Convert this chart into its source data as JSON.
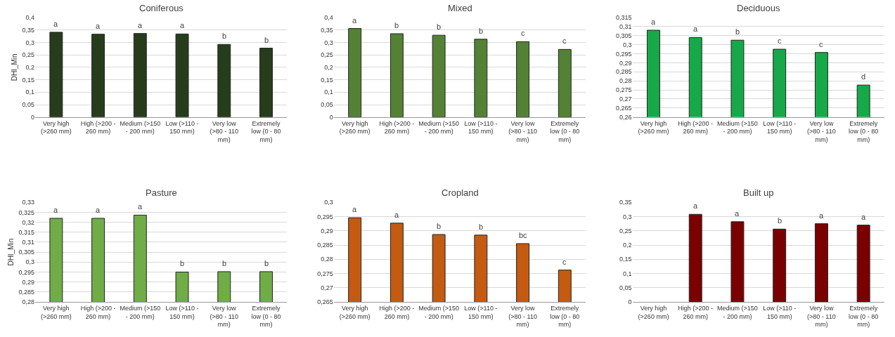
{
  "chart_data": [
    {
      "type": "bar",
      "title": "Coniferous",
      "ylabel": "DHI_Min",
      "categories": [
        "Very high (>260 mm)",
        "High (>200 - 260 mm)",
        "Medium (>150 - 200 mm)",
        "Low (>110 - 150 mm)",
        "Very low (>80 - 110 mm)",
        "Extremely low (0 - 80 mm)"
      ],
      "series": [
        {
          "color": "#263d1c",
          "values": [
            0.341,
            0.333,
            0.336,
            0.334,
            0.292,
            0.277
          ]
        }
      ],
      "ylim": [
        0,
        0.4
      ],
      "yticks": [
        0,
        {
          "value": 0.05,
          "label": "0,05"
        },
        {
          "value": 0.1,
          "label": "0,1"
        },
        {
          "value": 0.15,
          "label": "0,15"
        },
        {
          "value": 0.2,
          "label": "0,2"
        },
        {
          "value": 0.25,
          "label": "0,25"
        },
        {
          "value": 0.3,
          "label": "0,3"
        },
        {
          "value": 0.35,
          "label": "0,35"
        },
        {
          "value": 0.4,
          "label": "0,4"
        }
      ],
      "grid": "y",
      "annotations": [
        "a",
        "a",
        "a",
        "a",
        "b",
        "b"
      ]
    },
    {
      "type": "bar",
      "title": "Mixed",
      "categories": [
        "Very high (>260 mm)",
        "High (>200 - 260 mm)",
        "Medium (>150 - 200 mm)",
        "Low (>110 - 150 mm)",
        "Very low (>80 - 110 mm)",
        "Extremely low (0 - 80 mm)"
      ],
      "series": [
        {
          "color": "#548235",
          "values": [
            0.356,
            0.335,
            0.329,
            0.313,
            0.303,
            0.272
          ]
        }
      ],
      "ylim": [
        0,
        0.4
      ],
      "yticks": [
        0,
        {
          "value": 0.05,
          "label": "0,05"
        },
        {
          "value": 0.1,
          "label": "0,1"
        },
        {
          "value": 0.15,
          "label": "0,15"
        },
        {
          "value": 0.2,
          "label": "0,2"
        },
        {
          "value": 0.25,
          "label": "0,25"
        },
        {
          "value": 0.3,
          "label": "0,3"
        },
        {
          "value": 0.35,
          "label": "0,35"
        },
        {
          "value": 0.4,
          "label": "0,4"
        }
      ],
      "grid": "y",
      "annotations": [
        "a",
        "b",
        "b",
        "b",
        "c",
        "c"
      ]
    },
    {
      "type": "bar",
      "title": "Deciduous",
      "categories": [
        "Very high (>260 mm)",
        "High (>200 - 260 mm)",
        "Medium (>150 - 200 mm)",
        "Low (>110 - 150 mm)",
        "Very low (>80 - 110 mm)",
        "Extremely low (0 - 80 mm)"
      ],
      "series": [
        {
          "color": "#17a84a",
          "values": [
            0.308,
            0.304,
            0.3025,
            0.2975,
            0.2957,
            0.2777
          ]
        }
      ],
      "ylim": [
        0.26,
        0.315
      ],
      "yticks": [
        {
          "value": 0.26,
          "label": "0,26"
        },
        {
          "value": 0.265,
          "label": "0,265"
        },
        {
          "value": 0.27,
          "label": "0,27"
        },
        {
          "value": 0.275,
          "label": "0,275"
        },
        {
          "value": 0.28,
          "label": "0,28"
        },
        {
          "value": 0.285,
          "label": "0,285"
        },
        {
          "value": 0.29,
          "label": "0,29"
        },
        {
          "value": 0.295,
          "label": "0,295"
        },
        {
          "value": 0.3,
          "label": "0,3"
        },
        {
          "value": 0.305,
          "label": "0,305"
        },
        {
          "value": 0.31,
          "label": "0,31"
        },
        {
          "value": 0.315,
          "label": "0,315"
        }
      ],
      "grid": "y",
      "annotations": [
        "a",
        "a",
        "b",
        "c",
        "c",
        "d"
      ]
    },
    {
      "type": "bar",
      "title": "Pasture",
      "ylabel": "DHI_Min",
      "categories": [
        "Very high (>260 mm)",
        "High (>200 - 260 mm)",
        "Medium (>150 - 200 mm)",
        "Low (>110 - 150 mm)",
        "Very low (>80 - 110 mm)",
        "Extremely low (0 - 80 mm)"
      ],
      "series": [
        {
          "color": "#70ad47",
          "values": [
            0.322,
            0.322,
            0.3236,
            0.295,
            0.2952,
            0.2952
          ]
        }
      ],
      "ylim": [
        0.28,
        0.33
      ],
      "yticks": [
        {
          "value": 0.28,
          "label": "0,28"
        },
        {
          "value": 0.285,
          "label": "0,285"
        },
        {
          "value": 0.29,
          "label": "0,29"
        },
        {
          "value": 0.295,
          "label": "0,295"
        },
        {
          "value": 0.3,
          "label": "0,3"
        },
        {
          "value": 0.305,
          "label": "0,305"
        },
        {
          "value": 0.31,
          "label": "0,31"
        },
        {
          "value": 0.315,
          "label": "0,315"
        },
        {
          "value": 0.32,
          "label": "0,32"
        },
        {
          "value": 0.325,
          "label": "0,325"
        },
        {
          "value": 0.33,
          "label": "0,33"
        }
      ],
      "grid": "y",
      "annotations": [
        "a",
        "a",
        "a",
        "b",
        "b",
        "b"
      ]
    },
    {
      "type": "bar",
      "title": "Cropland",
      "categories": [
        "Very high (>260 mm)",
        "High (>200 - 260 mm)",
        "Medium (>150 - 200 mm)",
        "Low (>110 - 150 mm)",
        "Very low (>80 - 110 mm)",
        "Extremely low (0 - 80 mm)"
      ],
      "series": [
        {
          "color": "#c55a11",
          "values": [
            0.2946,
            0.2927,
            0.2887,
            0.2885,
            0.2855,
            0.2762
          ]
        }
      ],
      "ylim": [
        0.265,
        0.3
      ],
      "yticks": [
        {
          "value": 0.265,
          "label": "0,265"
        },
        {
          "value": 0.27,
          "label": "0,27"
        },
        {
          "value": 0.275,
          "label": "0,275"
        },
        {
          "value": 0.28,
          "label": "0,28"
        },
        {
          "value": 0.285,
          "label": "0,285"
        },
        {
          "value": 0.29,
          "label": "0,29"
        },
        {
          "value": 0.295,
          "label": "0,295"
        },
        {
          "value": 0.3,
          "label": "0,3"
        }
      ],
      "grid": "y",
      "annotations": [
        "a",
        "a",
        "b",
        "b",
        "bc",
        "c"
      ]
    },
    {
      "type": "bar",
      "title": "Built up",
      "categories": [
        "Very high (>260 mm)",
        "High (>200 - 260 mm)",
        "Medium (>150 - 200 mm)",
        "Low (>110 - 150 mm)",
        "Very low (>80 - 110 mm)",
        "Extremely low (0 - 80 mm)"
      ],
      "series": [
        {
          "color": "#7b0000",
          "values": [
            null,
            0.308,
            0.282,
            0.256,
            0.275,
            0.27
          ]
        }
      ],
      "ylim": [
        0,
        0.35
      ],
      "yticks": [
        0,
        {
          "value": 0.05,
          "label": "0,05"
        },
        {
          "value": 0.1,
          "label": "0,1"
        },
        {
          "value": 0.15,
          "label": "0,15"
        },
        {
          "value": 0.2,
          "label": "0,2"
        },
        {
          "value": 0.25,
          "label": "0,25"
        },
        {
          "value": 0.3,
          "label": "0,3"
        },
        {
          "value": 0.35,
          "label": "0,35"
        }
      ],
      "grid": "y",
      "annotations": [
        "a",
        "a",
        "b",
        "a",
        "a"
      ]
    }
  ]
}
